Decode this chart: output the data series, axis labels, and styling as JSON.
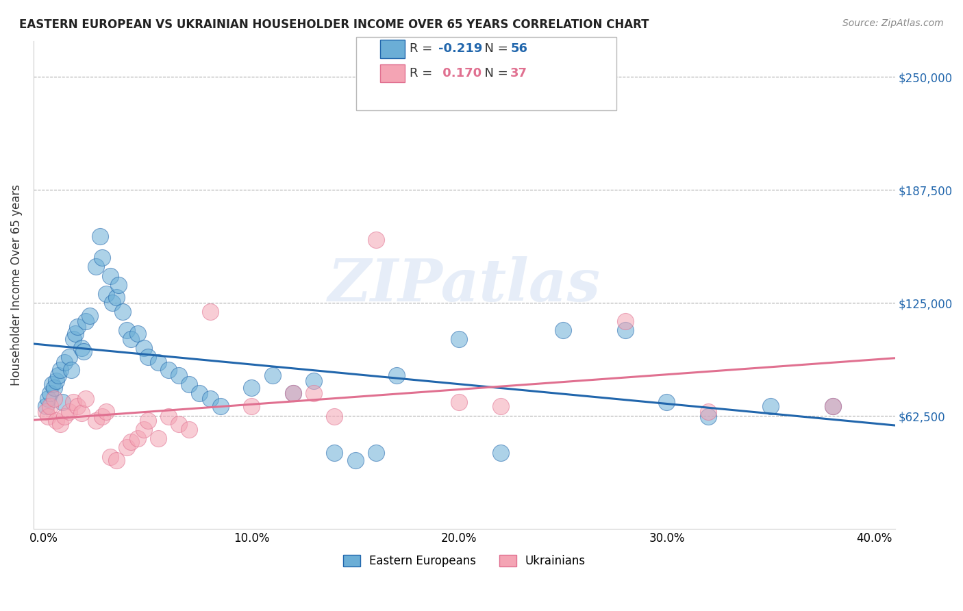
{
  "title": "EASTERN EUROPEAN VS UKRAINIAN HOUSEHOLDER INCOME OVER 65 YEARS CORRELATION CHART",
  "source": "Source: ZipAtlas.com",
  "ylabel": "Householder Income Over 65 years",
  "xlabel_ticks": [
    "0.0%",
    "10.0%",
    "20.0%",
    "30.0%",
    "40.0%"
  ],
  "xlabel_tick_vals": [
    0.0,
    0.1,
    0.2,
    0.3,
    0.4
  ],
  "ytick_labels": [
    "$62,500",
    "$125,000",
    "$187,500",
    "$250,000"
  ],
  "ytick_vals": [
    62500,
    125000,
    187500,
    250000
  ],
  "ylim": [
    0,
    270000
  ],
  "xlim": [
    -0.005,
    0.41
  ],
  "legend_line1": "R = -0.219   N = 56",
  "legend_line2": "R =  0.170   N = 37",
  "watermark": "ZIPatlas",
  "blue_color": "#6baed6",
  "blue_line_color": "#2166ac",
  "pink_color": "#f4a4b4",
  "pink_line_color": "#e07090",
  "blue_scatter": [
    [
      0.001,
      68000
    ],
    [
      0.002,
      72000
    ],
    [
      0.003,
      75000
    ],
    [
      0.004,
      80000
    ],
    [
      0.005,
      78000
    ],
    [
      0.006,
      82000
    ],
    [
      0.007,
      85000
    ],
    [
      0.008,
      88000
    ],
    [
      0.009,
      70000
    ],
    [
      0.01,
      92000
    ],
    [
      0.012,
      95000
    ],
    [
      0.013,
      88000
    ],
    [
      0.014,
      105000
    ],
    [
      0.015,
      108000
    ],
    [
      0.016,
      112000
    ],
    [
      0.018,
      100000
    ],
    [
      0.019,
      98000
    ],
    [
      0.02,
      115000
    ],
    [
      0.022,
      118000
    ],
    [
      0.025,
      145000
    ],
    [
      0.027,
      162000
    ],
    [
      0.028,
      150000
    ],
    [
      0.03,
      130000
    ],
    [
      0.032,
      140000
    ],
    [
      0.033,
      125000
    ],
    [
      0.035,
      128000
    ],
    [
      0.036,
      135000
    ],
    [
      0.038,
      120000
    ],
    [
      0.04,
      110000
    ],
    [
      0.042,
      105000
    ],
    [
      0.045,
      108000
    ],
    [
      0.048,
      100000
    ],
    [
      0.05,
      95000
    ],
    [
      0.055,
      92000
    ],
    [
      0.06,
      88000
    ],
    [
      0.065,
      85000
    ],
    [
      0.07,
      80000
    ],
    [
      0.075,
      75000
    ],
    [
      0.08,
      72000
    ],
    [
      0.085,
      68000
    ],
    [
      0.1,
      78000
    ],
    [
      0.11,
      85000
    ],
    [
      0.12,
      75000
    ],
    [
      0.13,
      82000
    ],
    [
      0.14,
      42000
    ],
    [
      0.15,
      38000
    ],
    [
      0.16,
      42000
    ],
    [
      0.17,
      85000
    ],
    [
      0.2,
      105000
    ],
    [
      0.22,
      42000
    ],
    [
      0.25,
      110000
    ],
    [
      0.28,
      110000
    ],
    [
      0.3,
      70000
    ],
    [
      0.32,
      62000
    ],
    [
      0.35,
      68000
    ],
    [
      0.38,
      68000
    ]
  ],
  "pink_scatter": [
    [
      0.001,
      65000
    ],
    [
      0.002,
      62000
    ],
    [
      0.003,
      68000
    ],
    [
      0.005,
      72000
    ],
    [
      0.006,
      60000
    ],
    [
      0.008,
      58000
    ],
    [
      0.01,
      62000
    ],
    [
      0.012,
      65000
    ],
    [
      0.014,
      70000
    ],
    [
      0.016,
      68000
    ],
    [
      0.018,
      64000
    ],
    [
      0.02,
      72000
    ],
    [
      0.025,
      60000
    ],
    [
      0.028,
      62000
    ],
    [
      0.03,
      65000
    ],
    [
      0.032,
      40000
    ],
    [
      0.035,
      38000
    ],
    [
      0.04,
      45000
    ],
    [
      0.042,
      48000
    ],
    [
      0.045,
      50000
    ],
    [
      0.048,
      55000
    ],
    [
      0.05,
      60000
    ],
    [
      0.06,
      62000
    ],
    [
      0.065,
      58000
    ],
    [
      0.08,
      120000
    ],
    [
      0.1,
      68000
    ],
    [
      0.12,
      75000
    ],
    [
      0.13,
      75000
    ],
    [
      0.14,
      62000
    ],
    [
      0.16,
      160000
    ],
    [
      0.2,
      70000
    ],
    [
      0.22,
      68000
    ],
    [
      0.28,
      115000
    ],
    [
      0.32,
      65000
    ],
    [
      0.38,
      68000
    ],
    [
      0.055,
      50000
    ],
    [
      0.07,
      55000
    ]
  ],
  "blue_R": -0.219,
  "blue_N": 56,
  "pink_R": 0.17,
  "pink_N": 37
}
